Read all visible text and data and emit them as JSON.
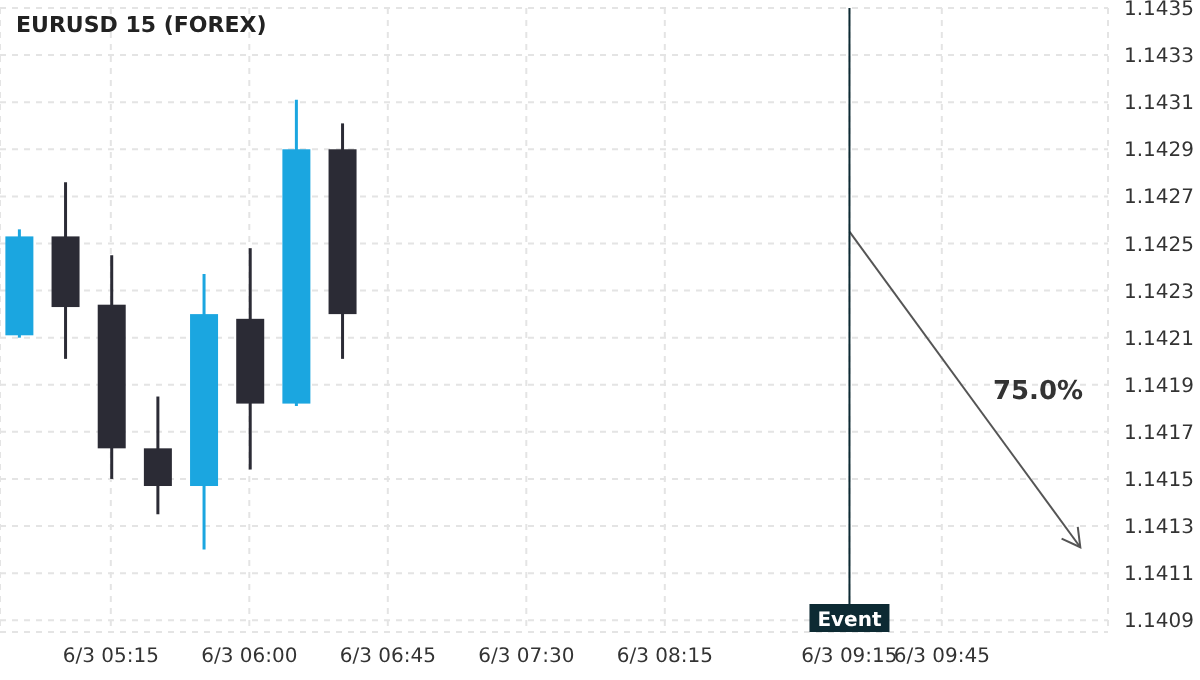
{
  "chart_data": {
    "type": "candlestick",
    "title": "EURUSD 15 (FOREX)",
    "x": [
      "--06-03T04:45",
      "--06-03T05:00",
      "--06-03T05:15",
      "--06-03T05:30",
      "--06-03T05:45",
      "--06-03T06:00",
      "--06-03T06:15",
      "--06-03T06:30"
    ],
    "ohlc": [
      [
        1.14211,
        1.14256,
        1.1421,
        1.14253
      ],
      [
        1.14253,
        1.14276,
        1.14201,
        1.14223
      ],
      [
        1.14224,
        1.14245,
        1.1415,
        1.14163
      ],
      [
        1.14163,
        1.14185,
        1.14135,
        1.14147
      ],
      [
        1.14147,
        1.14237,
        1.1412,
        1.1422
      ],
      [
        1.14218,
        1.14248,
        1.14154,
        1.14182
      ],
      [
        1.14182,
        1.14311,
        1.14181,
        1.1429
      ],
      [
        1.1429,
        1.14301,
        1.14201,
        1.1422
      ]
    ],
    "colors": [
      "#1ba6e0",
      "#2b2b35",
      "#2b2b35",
      "#2b2b35",
      "#1ba6e0",
      "#2b2b35",
      "#1ba6e0",
      "#2b2b35"
    ],
    "series": [
      {
        "type": "line",
        "color": "#555555",
        "x": [
          "--06-03T09:15",
          "--06-03T10:30"
        ],
        "values": [
          1.14255,
          1.14121
        ]
      }
    ],
    "xlim": [
      "--06-03T04:39",
      "--06-03T10:39"
    ],
    "xticks": [
      {
        "value": "--06-03T05:15",
        "label": "6/3 05:15"
      },
      {
        "value": "--06-03T06:00",
        "label": "6/3 06:00"
      },
      {
        "value": "--06-03T06:45",
        "label": "6/3 06:45"
      },
      {
        "value": "--06-03T07:30",
        "label": "6/3 07:30"
      },
      {
        "value": "--06-03T08:15",
        "label": "6/3 08:15"
      },
      {
        "value": "--06-03T09:15",
        "label": "6/3 09:15"
      },
      {
        "value": "--06-03T09:45",
        "label": "6/3 09:45"
      }
    ],
    "ylim": [
      1.14085,
      1.1435
    ],
    "yticks": [
      1.1409,
      1.1411,
      1.1413,
      1.1415,
      1.1417,
      1.1419,
      1.1421,
      1.1423,
      1.1425,
      1.1427,
      1.1429,
      1.1431,
      1.1433,
      1.1435
    ],
    "ref_lines": [
      {
        "axis": "x",
        "value": "--06-03T09:15",
        "label": "Event",
        "color": "#0d2a33"
      }
    ],
    "annotations": [
      "75.0%"
    ],
    "grid": true
  }
}
